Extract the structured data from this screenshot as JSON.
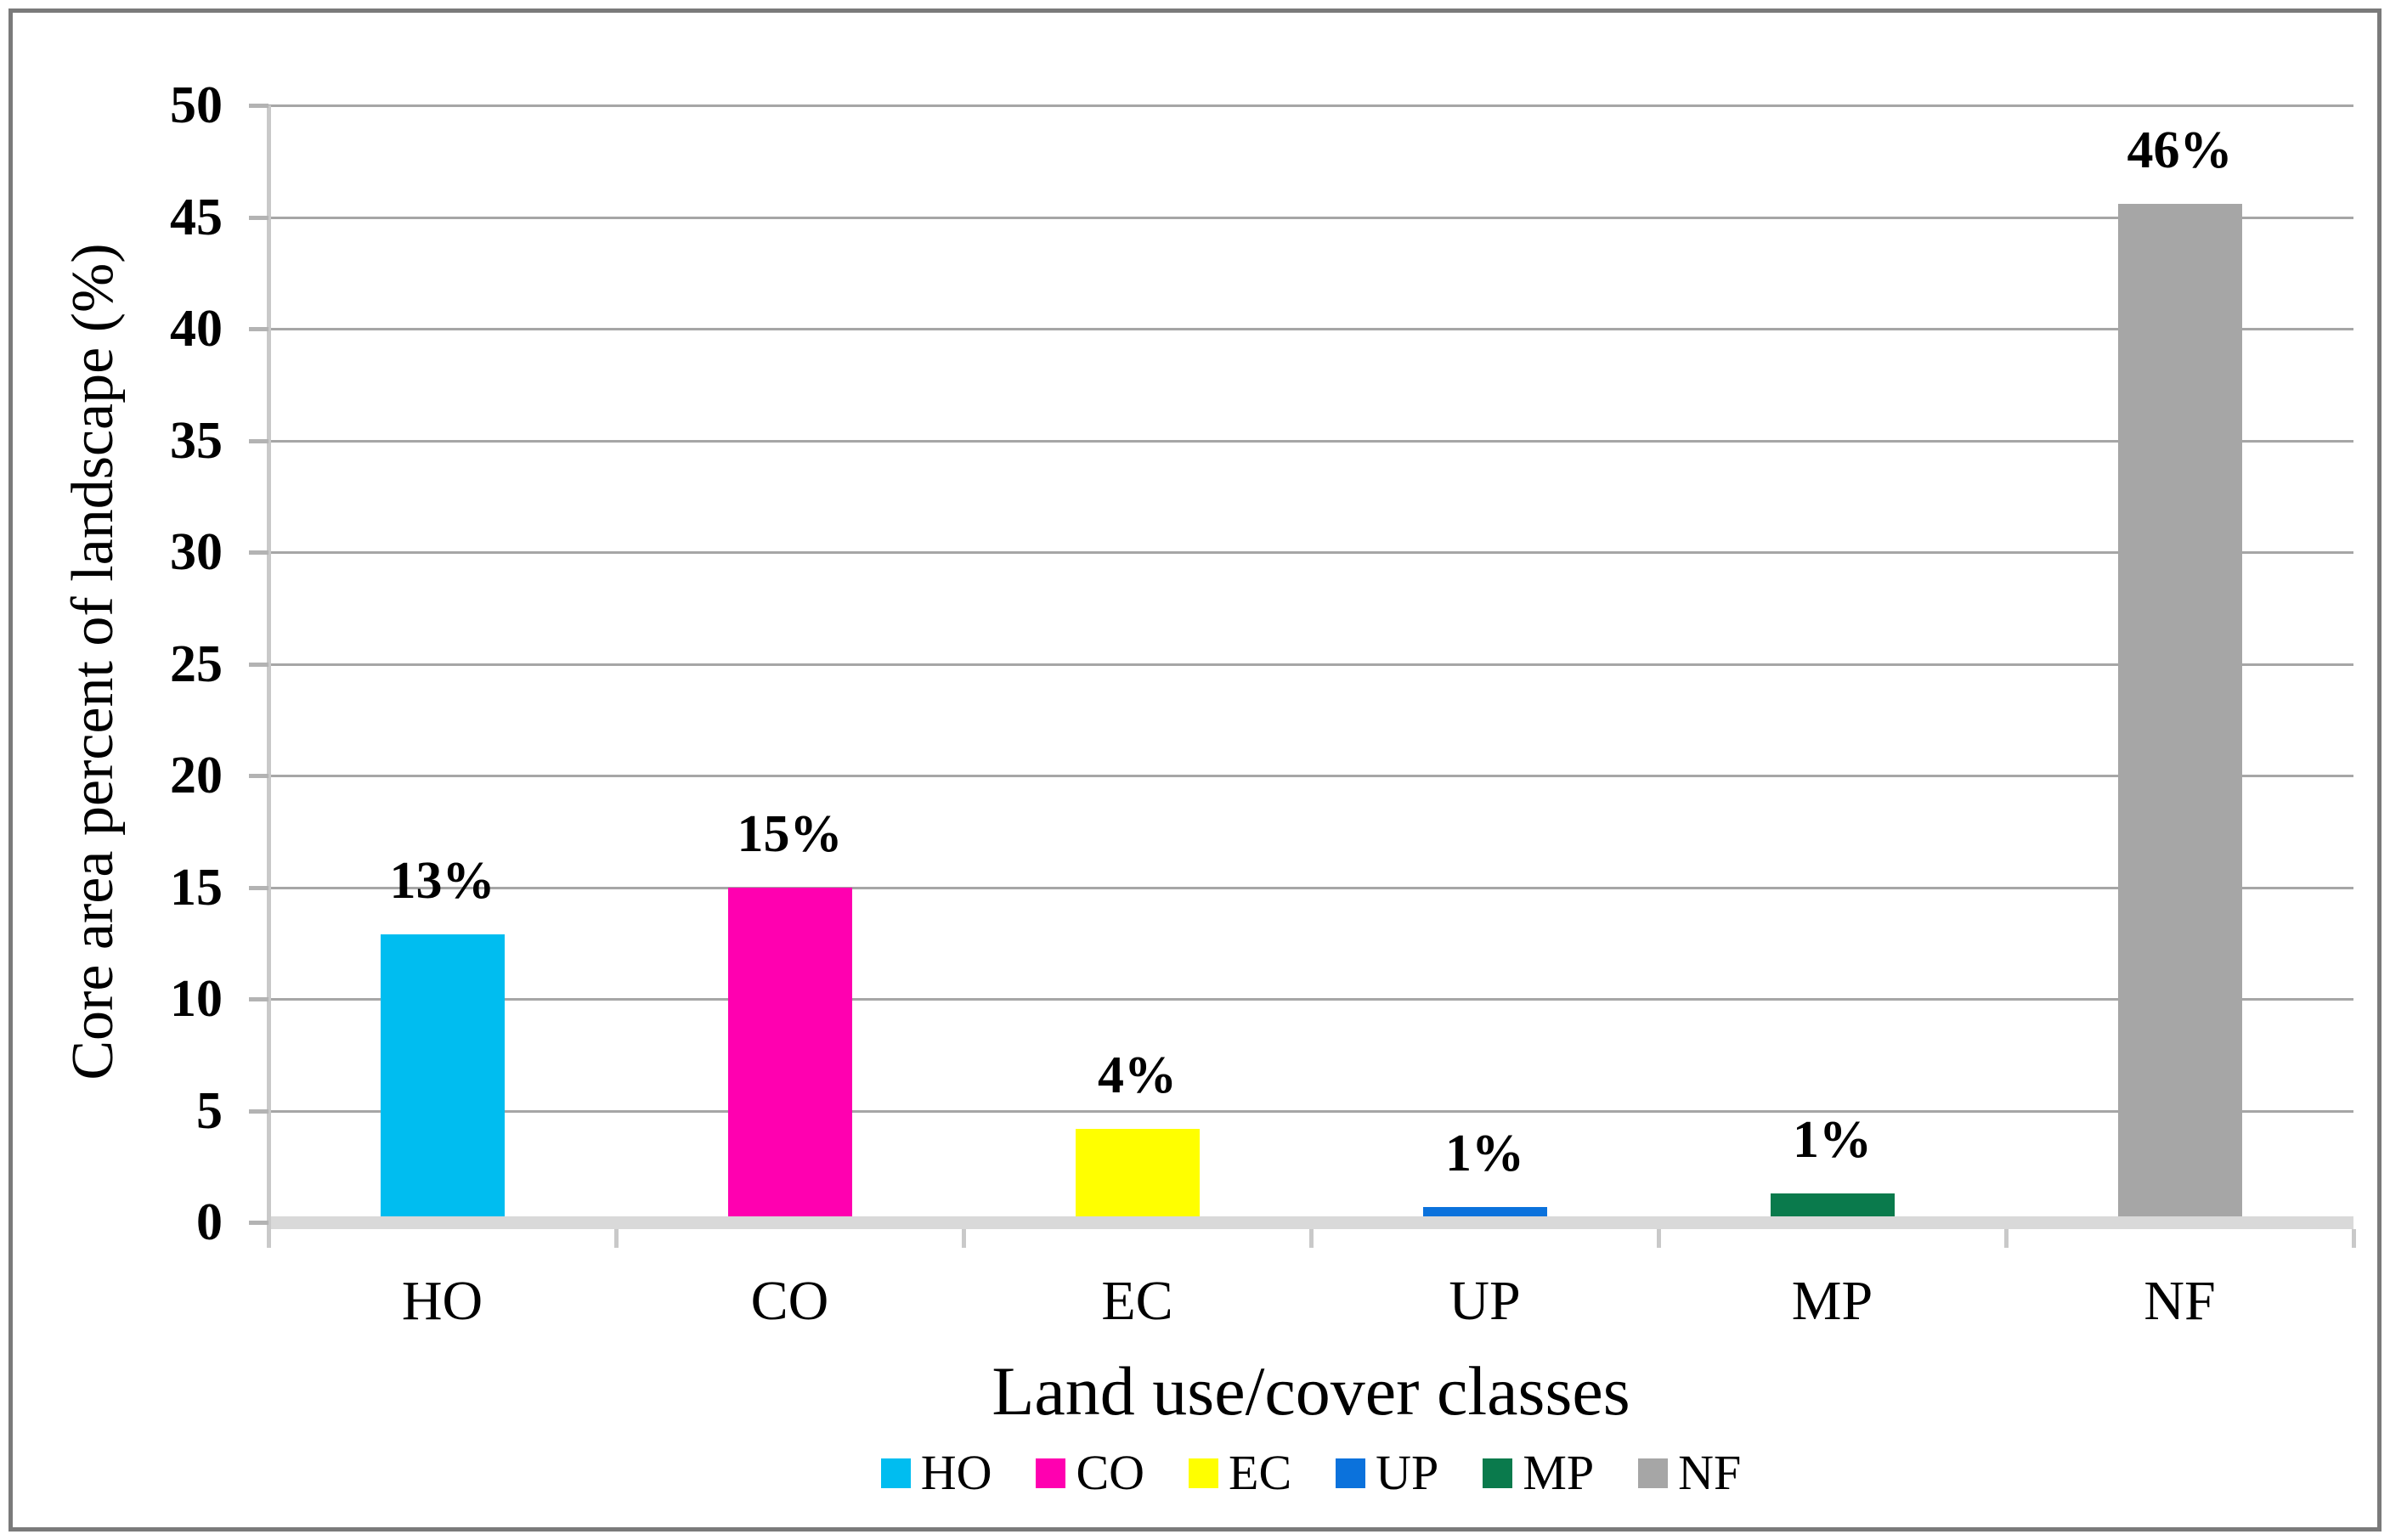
{
  "chart_data": {
    "type": "bar",
    "title": "",
    "categories": [
      "HO",
      "CO",
      "EC",
      "UP",
      "MP",
      "NF"
    ],
    "values": [
      12.9,
      15.0,
      4.2,
      0.7,
      1.3,
      45.6
    ],
    "data_labels": [
      "13%",
      "15%",
      "4%",
      "1%",
      "1%",
      "46%"
    ],
    "bar_colors": [
      "#00BDF0",
      "#FF00B0",
      "#FFFF00",
      "#0B72DC",
      "#0A7A4C",
      "#A6A6A6"
    ],
    "xlabel": "Land use/cover classes",
    "ylabel": "Core area percent of landscape (%)",
    "ylim": [
      0,
      50
    ],
    "ytick_step": 5,
    "ytick_labels": [
      "0",
      "5",
      "10",
      "15",
      "20",
      "25",
      "30",
      "35",
      "40",
      "45",
      "50"
    ],
    "grid": "horizontal gridlines on, every 5 units",
    "legend": {
      "position": "bottom-center",
      "entries": [
        {
          "label": "HO",
          "color": "#00BDF0"
        },
        {
          "label": "CO",
          "color": "#FF00B0"
        },
        {
          "label": "EC",
          "color": "#FFFF00"
        },
        {
          "label": "UP",
          "color": "#0B72DC"
        },
        {
          "label": "MP",
          "color": "#0A7A4C"
        },
        {
          "label": "NF",
          "color": "#A6A6A6"
        }
      ]
    }
  },
  "style": {
    "figure_border_color": "#7A7A7A",
    "gridline_color": "#A6A6A6",
    "axis_line_color": "#C9C9C9",
    "baseline_band_color": "#D9D9D9",
    "tick_color": "#B3B3B3",
    "text_color": "#000000",
    "background_color": "#FFFFFF"
  }
}
